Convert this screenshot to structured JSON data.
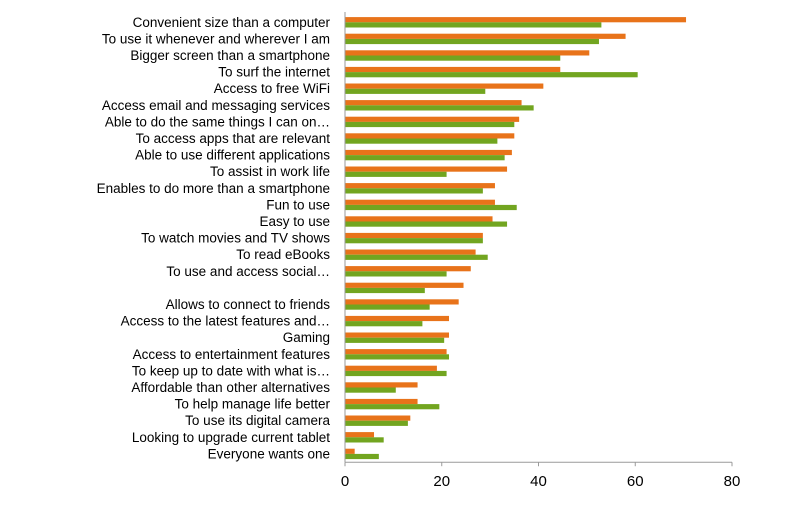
{
  "chart_data": {
    "type": "bar",
    "orientation": "horizontal",
    "categories": [
      "Convenient size than a computer",
      "To use it whenever and wherever I am",
      "Bigger screen than a smartphone",
      "To surf the internet",
      "Access to free WiFi",
      "Access email and messaging services",
      "Able to do the same things I can on…",
      "To access apps that are relevant",
      "Able to use different applications",
      "To assist in work life",
      "Enables to do more than a smartphone",
      "Fun to use",
      "Easy to use",
      "To watch movies and TV shows",
      "To read eBooks",
      "To use and access social…",
      "",
      "Allows to connect to friends",
      "Access to the latest features and…",
      "Gaming",
      "Access to entertainment features",
      "To keep up to date with what is…",
      "Affordable than other alternatives",
      "To help manage life better",
      "To use its digital camera",
      "Looking to upgrade current tablet",
      "Everyone wants one"
    ],
    "series": [
      {
        "color": "#e8731a",
        "values": [
          70.5,
          58,
          50.5,
          44.5,
          41,
          36.5,
          36,
          35,
          34.5,
          33.5,
          31,
          31,
          30.5,
          28.5,
          27,
          26,
          24.5,
          23.5,
          21.5,
          21.5,
          21,
          19,
          15,
          15,
          13.5,
          6,
          2
        ]
      },
      {
        "color": "#72a520",
        "values": [
          53,
          52.5,
          44.5,
          60.5,
          29,
          39,
          35,
          31.5,
          33,
          21,
          28.5,
          35.5,
          33.5,
          28.5,
          29.5,
          21,
          16.5,
          17.5,
          16,
          20.5,
          21.5,
          21,
          10.5,
          19.5,
          13,
          8,
          7
        ]
      }
    ],
    "xlim": [
      0,
      80
    ],
    "xticks": [
      "0",
      "20",
      "40",
      "60",
      "80"
    ],
    "grid": false,
    "legend": "none"
  }
}
